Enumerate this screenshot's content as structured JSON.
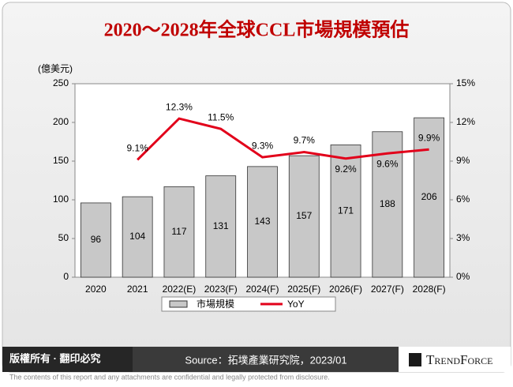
{
  "chart_data": {
    "type": "bar_line",
    "title": "2020～2028年全球CCL市場規模預估",
    "y_label": "(億美元)",
    "categories": [
      "2020",
      "2021",
      "2022(E)",
      "2023(F)",
      "2024(F)",
      "2025(F)",
      "2026(F)",
      "2027(F)",
      "2028(F)"
    ],
    "series": [
      {
        "name": "市場規模",
        "type": "bar",
        "color": "#c8c8c8",
        "values": [
          96,
          104,
          117,
          131,
          143,
          157,
          171,
          188,
          206
        ]
      },
      {
        "name": "YoY",
        "type": "line",
        "axis": "y2",
        "color": "#e2001a",
        "values": [
          null,
          9.1,
          12.3,
          11.5,
          9.3,
          9.7,
          9.2,
          9.6,
          9.9
        ],
        "value_labels": [
          null,
          "9.1%",
          "12.3%",
          "11.5%",
          "9.3%",
          "9.7%",
          "9.2%",
          "9.6%",
          "9.9%"
        ]
      }
    ],
    "ylim": [
      0,
      250
    ],
    "yticks": [
      0,
      50,
      100,
      150,
      200,
      250
    ],
    "y2lim": [
      0,
      15
    ],
    "y2ticks": [
      {
        "value": 0,
        "label": "0%"
      },
      {
        "value": 3,
        "label": "3%"
      },
      {
        "value": 6,
        "label": "6%"
      },
      {
        "value": 9,
        "label": "9%"
      },
      {
        "value": 12,
        "label": "12%"
      },
      {
        "value": 15,
        "label": "15%"
      }
    ],
    "legend": "bottom"
  },
  "footer": {
    "copyright": "版權所有 · 翻印必究",
    "source": "Source：拓墣產業研究院，2023/01",
    "logo": "TrendForce",
    "disclaimer": "The contents of this report and any attachments are confidential and legally protected from disclosure."
  }
}
